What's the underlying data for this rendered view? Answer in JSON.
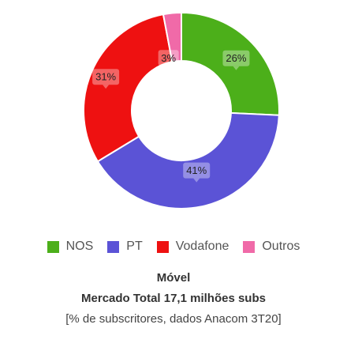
{
  "chart_data": {
    "type": "pie",
    "donut": true,
    "categories": [
      "NOS",
      "PT",
      "Vodafone",
      "Outros"
    ],
    "values": [
      26,
      41,
      31,
      3
    ],
    "labels": [
      "26%",
      "41%",
      "31%",
      "3%"
    ],
    "colors": [
      "#4caf1a",
      "#5b53d6",
      "#ee1111",
      "#f06aa8"
    ],
    "legend_position": "bottom",
    "title": "Móvel",
    "subtitle": "Mercado Total 17,1 milhões subs",
    "note": "[% de subscritores, dados Anacom 3T20]"
  }
}
